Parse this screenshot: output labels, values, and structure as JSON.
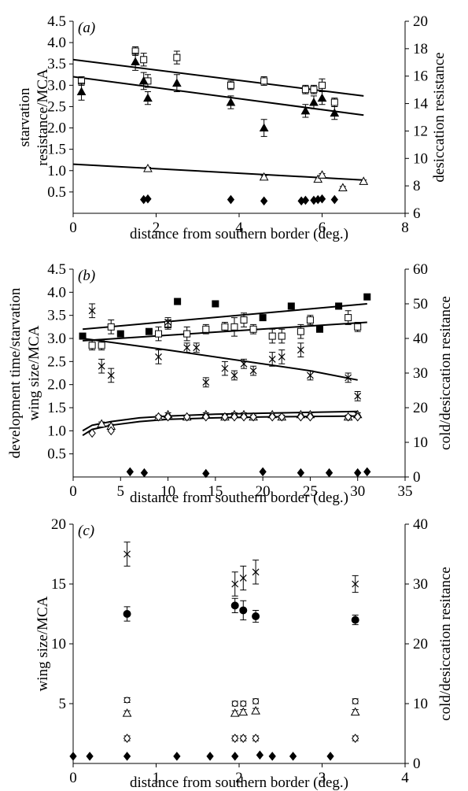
{
  "chart_data": [
    {
      "panel_label": "(a)",
      "type": "scatter",
      "xlabel": "distance from southern border (deg.)",
      "ylabel_left": [
        "starvation",
        "resistance/MCA"
      ],
      "ylabel_right": "desiccation resistance",
      "xlim": [
        0,
        8
      ],
      "ylim_left": [
        0,
        4.5
      ],
      "ylim_right": [
        6,
        20
      ],
      "x_ticks": [
        "0",
        "2",
        "4",
        "6",
        "8"
      ],
      "y_ticks_left": [
        "0.5",
        "1.0",
        "1.5",
        "2.0",
        "2.5",
        "3.0",
        "3.5",
        "4.0",
        "4.5"
      ],
      "y_ticks_right": [
        "6",
        "8",
        "10",
        "12",
        "14",
        "16",
        "18",
        "20"
      ],
      "series": [
        {
          "marker": "open-square",
          "axis": "left",
          "points": [
            [
              0.2,
              3.1
            ],
            [
              1.5,
              3.8
            ],
            [
              1.7,
              3.6
            ],
            [
              1.8,
              3.1
            ],
            [
              2.5,
              3.65
            ],
            [
              3.8,
              3.0
            ],
            [
              4.6,
              3.1
            ],
            [
              5.6,
              2.9
            ],
            [
              5.8,
              2.9
            ],
            [
              6.0,
              3.0
            ],
            [
              6.3,
              2.6
            ]
          ],
          "errors": [
            0.1,
            0.1,
            0.15,
            0.15,
            0.15,
            0.1,
            0.1,
            0.1,
            0.1,
            0.15,
            0.1
          ]
        },
        {
          "marker": "filled-triangle",
          "axis": "left",
          "points": [
            [
              0.2,
              2.85
            ],
            [
              1.5,
              3.55
            ],
            [
              1.7,
              3.1
            ],
            [
              1.8,
              2.7
            ],
            [
              2.5,
              3.05
            ],
            [
              3.8,
              2.6
            ],
            [
              4.6,
              2.0
            ],
            [
              5.6,
              2.4
            ],
            [
              5.8,
              2.6
            ],
            [
              6.0,
              2.7
            ],
            [
              6.3,
              2.35
            ]
          ],
          "errors": [
            0.2,
            0.2,
            0.2,
            0.15,
            0.2,
            0.15,
            0.2,
            0.15,
            0.15,
            0.15,
            0.15
          ]
        },
        {
          "marker": "open-triangle",
          "axis": "left",
          "points": [
            [
              1.8,
              1.05
            ],
            [
              4.6,
              0.85
            ],
            [
              5.9,
              0.8
            ],
            [
              6.0,
              0.9
            ],
            [
              6.5,
              0.6
            ],
            [
              7.0,
              0.75
            ]
          ],
          "errors": [
            0.03,
            0.03,
            0.03,
            0.03,
            0.03,
            0.03
          ]
        },
        {
          "marker": "filled-diamond",
          "axis": "right",
          "points": [
            [
              1.7,
              7.0
            ],
            [
              1.8,
              7.05
            ],
            [
              3.8,
              7.0
            ],
            [
              4.6,
              6.9
            ],
            [
              5.5,
              6.9
            ],
            [
              5.6,
              6.95
            ],
            [
              5.8,
              6.95
            ],
            [
              5.9,
              7.0
            ],
            [
              6.0,
              7.05
            ],
            [
              6.3,
              7.0
            ]
          ]
        }
      ],
      "fit_lines": [
        {
          "axis": "left",
          "points": [
            [
              0,
              3.6
            ],
            [
              7,
              2.75
            ]
          ]
        },
        {
          "axis": "left",
          "points": [
            [
              0,
              3.2
            ],
            [
              7,
              2.3
            ]
          ]
        },
        {
          "axis": "left",
          "points": [
            [
              0,
              1.15
            ],
            [
              7,
              0.78
            ]
          ]
        }
      ]
    },
    {
      "panel_label": "(b)",
      "type": "scatter",
      "xlabel": "distance from southern border (deg.)",
      "ylabel_left": [
        "development time/starvation",
        "wing size/MCA"
      ],
      "ylabel_right": "cold/desiccation resitance",
      "xlim": [
        0,
        35
      ],
      "ylim_left": [
        0,
        4.5
      ],
      "ylim_right": [
        0,
        60
      ],
      "x_ticks": [
        "0",
        "5",
        "10",
        "15",
        "20",
        "25",
        "30",
        "35"
      ],
      "y_ticks_left": [
        "0.5",
        "1.0",
        "1.5",
        "2.0",
        "2.5",
        "3.0",
        "3.5",
        "4.0",
        "4.5"
      ],
      "y_ticks_right": [
        "0",
        "10",
        "20",
        "30",
        "40",
        "50",
        "60"
      ],
      "series": [
        {
          "marker": "filled-square",
          "axis": "left",
          "points": [
            [
              1,
              3.05
            ],
            [
              5,
              3.1
            ],
            [
              8,
              3.15
            ],
            [
              11,
              3.8
            ],
            [
              15,
              3.75
            ],
            [
              20,
              3.45
            ],
            [
              23,
              3.7
            ],
            [
              26,
              3.2
            ],
            [
              28,
              3.7
            ],
            [
              31,
              3.9
            ]
          ],
          "errors": [
            0.05,
            0.05,
            0.05,
            0.05,
            0.05,
            0.05,
            0.05,
            0.05,
            0.05,
            0.05
          ]
        },
        {
          "marker": "open-square",
          "axis": "left",
          "points": [
            [
              2,
              2.85
            ],
            [
              3,
              2.85
            ],
            [
              4,
              3.25
            ],
            [
              9,
              3.1
            ],
            [
              10,
              3.3
            ],
            [
              12,
              3.1
            ],
            [
              14,
              3.2
            ],
            [
              16,
              3.25
            ],
            [
              17,
              3.25
            ],
            [
              18,
              3.4
            ],
            [
              19,
              3.2
            ],
            [
              21,
              3.05
            ],
            [
              22,
              3.05
            ],
            [
              24,
              3.15
            ],
            [
              25,
              3.4
            ],
            [
              29,
              3.45
            ],
            [
              30,
              3.25
            ]
          ],
          "errors": [
            0.1,
            0.1,
            0.15,
            0.15,
            0.1,
            0.15,
            0.1,
            0.1,
            0.2,
            0.15,
            0.1,
            0.15,
            0.15,
            0.15,
            0.1,
            0.15,
            0.1
          ]
        },
        {
          "marker": "cross",
          "axis": "left",
          "points": [
            [
              2,
              3.6
            ],
            [
              3,
              2.4
            ],
            [
              4,
              2.2
            ],
            [
              9,
              2.6
            ],
            [
              10,
              3.35
            ],
            [
              12,
              2.8
            ],
            [
              13,
              2.8
            ],
            [
              14,
              2.05
            ],
            [
              16,
              2.35
            ],
            [
              17,
              2.2
            ],
            [
              18,
              2.45
            ],
            [
              19,
              2.3
            ],
            [
              21,
              2.55
            ],
            [
              22,
              2.6
            ],
            [
              24,
              2.75
            ],
            [
              25,
              2.2
            ],
            [
              29,
              2.15
            ],
            [
              30,
              1.75
            ]
          ],
          "errors": [
            0.15,
            0.15,
            0.15,
            0.15,
            0.1,
            0.1,
            0.1,
            0.1,
            0.15,
            0.1,
            0.1,
            0.1,
            0.15,
            0.15,
            0.15,
            0.1,
            0.1,
            0.1
          ]
        },
        {
          "marker": "open-triangle",
          "axis": "left",
          "points": [
            [
              3,
              1.15
            ],
            [
              4,
              1.1
            ],
            [
              9,
              1.3
            ],
            [
              10,
              1.35
            ],
            [
              12,
              1.3
            ],
            [
              14,
              1.35
            ],
            [
              16,
              1.3
            ],
            [
              17,
              1.35
            ],
            [
              18,
              1.35
            ],
            [
              19,
              1.3
            ],
            [
              21,
              1.35
            ],
            [
              22,
              1.3
            ],
            [
              24,
              1.35
            ],
            [
              25,
              1.35
            ],
            [
              29,
              1.3
            ],
            [
              30,
              1.35
            ]
          ],
          "errors": [
            0.04,
            0.04,
            0.04,
            0.04,
            0.04,
            0.04,
            0.04,
            0.04,
            0.04,
            0.04,
            0.04,
            0.04,
            0.04,
            0.04,
            0.04,
            0.04
          ]
        },
        {
          "marker": "open-diamond",
          "axis": "left",
          "points": [
            [
              2,
              0.95
            ],
            [
              4,
              1.0
            ],
            [
              9,
              1.3
            ],
            [
              10,
              1.3
            ],
            [
              12,
              1.3
            ],
            [
              14,
              1.3
            ],
            [
              16,
              1.3
            ],
            [
              17,
              1.3
            ],
            [
              18,
              1.3
            ],
            [
              19,
              1.3
            ],
            [
              21,
              1.3
            ],
            [
              22,
              1.3
            ],
            [
              24,
              1.3
            ],
            [
              25,
              1.3
            ],
            [
              29,
              1.3
            ],
            [
              30,
              1.3
            ]
          ]
        },
        {
          "marker": "filled-diamond",
          "axis": "right",
          "points": [
            [
              6,
              1.5
            ],
            [
              7.5,
              1.2
            ],
            [
              14,
              1.0
            ],
            [
              20,
              1.5
            ],
            [
              24,
              1.2
            ],
            [
              27,
              1.2
            ],
            [
              30,
              1.2
            ],
            [
              31,
              1.5
            ]
          ]
        }
      ],
      "fit_lines": [
        {
          "axis": "left",
          "points": [
            [
              1,
              3.2
            ],
            [
              31,
              3.75
            ]
          ]
        },
        {
          "axis": "left",
          "points": [
            [
              1,
              2.95
            ],
            [
              31,
              3.35
            ]
          ]
        },
        {
          "axis": "left",
          "points": [
            [
              1,
              3.0
            ],
            [
              10,
              2.75
            ],
            [
              25,
              2.3
            ],
            [
              30,
              2.1
            ]
          ]
        },
        {
          "axis": "left",
          "points": [
            [
              1,
              1.0
            ],
            [
              2,
              1.12
            ],
            [
              4,
              1.2
            ],
            [
              7,
              1.28
            ],
            [
              10,
              1.32
            ],
            [
              15,
              1.36
            ],
            [
              20,
              1.38
            ],
            [
              30,
              1.42
            ]
          ]
        },
        {
          "axis": "left",
          "points": [
            [
              1,
              0.9
            ],
            [
              2,
              1.03
            ],
            [
              4,
              1.12
            ],
            [
              7,
              1.2
            ],
            [
              10,
              1.25
            ],
            [
              15,
              1.28
            ],
            [
              20,
              1.3
            ],
            [
              30,
              1.32
            ]
          ]
        }
      ]
    },
    {
      "panel_label": "(c)",
      "type": "scatter",
      "xlabel": "distance from southern border (deg.)",
      "ylabel_left": [
        "wing size/MCA"
      ],
      "ylabel_right": "cold/desiccation resitance",
      "xlim": [
        0,
        4
      ],
      "ylim_left": [
        0,
        20
      ],
      "ylim_right": [
        0,
        40
      ],
      "x_ticks": [
        "0",
        "1",
        "2",
        "3",
        "4"
      ],
      "y_ticks_left": [
        "5",
        "10",
        "15",
        "20"
      ],
      "y_ticks_right": [
        "0",
        "10",
        "20",
        "30",
        "40"
      ],
      "series": [
        {
          "marker": "cross",
          "axis": "left",
          "points": [
            [
              0.65,
              17.5
            ],
            [
              1.95,
              15.0
            ],
            [
              2.05,
              15.5
            ],
            [
              2.2,
              16.0
            ],
            [
              3.4,
              15.0
            ]
          ],
          "errors": [
            1.0,
            1.0,
            1.0,
            1.0,
            0.7
          ]
        },
        {
          "marker": "filled-circle",
          "axis": "left",
          "points": [
            [
              0.65,
              12.5
            ],
            [
              1.95,
              13.2
            ],
            [
              2.05,
              12.8
            ],
            [
              2.2,
              12.3
            ],
            [
              3.4,
              12.0
            ]
          ],
          "errors": [
            0.6,
            0.6,
            0.8,
            0.5,
            0.4
          ]
        },
        {
          "marker": "open-circle",
          "axis": "left",
          "points": [
            [
              0.65,
              5.3
            ],
            [
              1.95,
              5.0
            ],
            [
              2.05,
              5.0
            ],
            [
              2.2,
              5.2
            ],
            [
              3.4,
              5.2
            ]
          ],
          "errors": [
            0.2,
            0.2,
            0.2,
            0.2,
            0.2
          ]
        },
        {
          "marker": "open-triangle",
          "axis": "left",
          "points": [
            [
              0.65,
              4.2
            ],
            [
              1.95,
              4.2
            ],
            [
              2.05,
              4.3
            ],
            [
              2.2,
              4.4
            ],
            [
              3.4,
              4.3
            ]
          ],
          "errors": [
            0.2,
            0.2,
            0.2,
            0.2,
            0.2
          ]
        },
        {
          "marker": "open-diamond",
          "axis": "left",
          "points": [
            [
              0.65,
              2.1
            ],
            [
              1.95,
              2.1
            ],
            [
              2.05,
              2.1
            ],
            [
              2.2,
              2.1
            ],
            [
              3.4,
              2.1
            ]
          ],
          "errors": [
            0.2,
            0.2,
            0.2,
            0.2,
            0.2
          ]
        },
        {
          "marker": "filled-diamond",
          "axis": "right",
          "points": [
            [
              0.0,
              1.2
            ],
            [
              0.2,
              1.2
            ],
            [
              0.65,
              1.2
            ],
            [
              1.25,
              1.2
            ],
            [
              1.65,
              1.2
            ],
            [
              1.95,
              1.2
            ],
            [
              2.25,
              1.4
            ],
            [
              2.4,
              1.2
            ],
            [
              2.65,
              1.2
            ],
            [
              3.1,
              1.2
            ]
          ]
        }
      ],
      "fit_lines": []
    }
  ]
}
